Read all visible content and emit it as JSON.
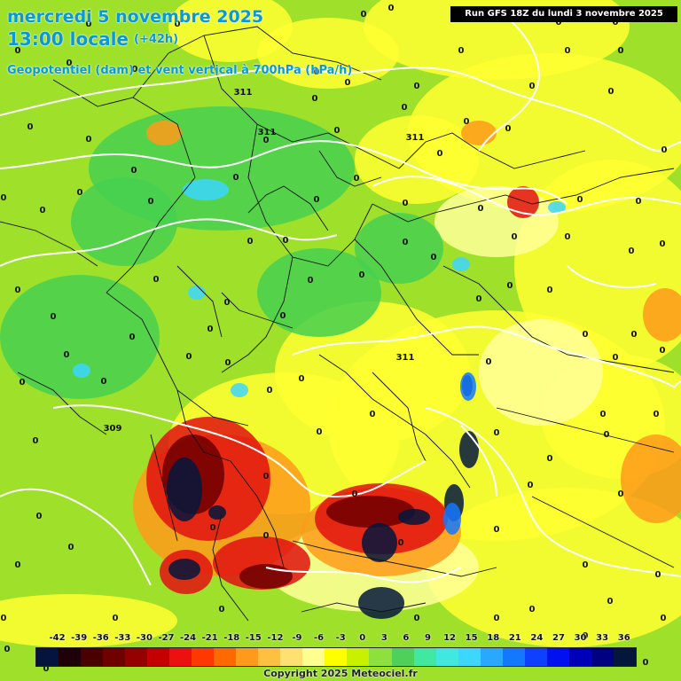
{
  "header": {
    "date": "mercredi 5 novembre 2025",
    "time": "13:00 locale",
    "lead": "(+42h)",
    "parameter": "Geopotentiel (dam) et vent vertical à 700hPa (hPa/h)"
  },
  "run_banner": "Run GFS 18Z du lundi 3 novembre 2025",
  "copyright": "Copyright 2025 Meteociel.fr",
  "scale": {
    "values": [
      "-42",
      "-39",
      "-36",
      "-33",
      "-30",
      "-27",
      "-24",
      "-21",
      "-18",
      "-15",
      "-12",
      "-9",
      "-6",
      "-3",
      "0",
      "3",
      "6",
      "9",
      "12",
      "15",
      "18",
      "21",
      "24",
      "27",
      "30",
      "33",
      "36"
    ],
    "colors": [
      "#05143d",
      "#200008",
      "#4a0000",
      "#6e0000",
      "#950000",
      "#c40000",
      "#ec1010",
      "#ff3800",
      "#ff6a00",
      "#ff9a1a",
      "#ffc040",
      "#ffe070",
      "#ffff90",
      "#ffff00",
      "#c8f000",
      "#8ee03c",
      "#4ed05a",
      "#40e8a0",
      "#40e8e0",
      "#3cd6ff",
      "#28a8ff",
      "#1478ff",
      "#1040ff",
      "#0010f0",
      "#0000b8",
      "#000080",
      "#04163c"
    ]
  },
  "field_colors": {
    "background": "#9ee02a",
    "yellow": "#ffff30",
    "pale_yellow": "#ffff99",
    "green": "#46d050",
    "cyan": "#3cd6ff",
    "orange": "#ff9a1a",
    "red": "#e01010",
    "dark_red": "#6e0000",
    "navy": "#04163c",
    "blue": "#1478ff"
  },
  "contour_labels": [
    "311",
    "311",
    "311",
    "311",
    "309"
  ],
  "zero_label": "0",
  "zero_label_count": 104
}
